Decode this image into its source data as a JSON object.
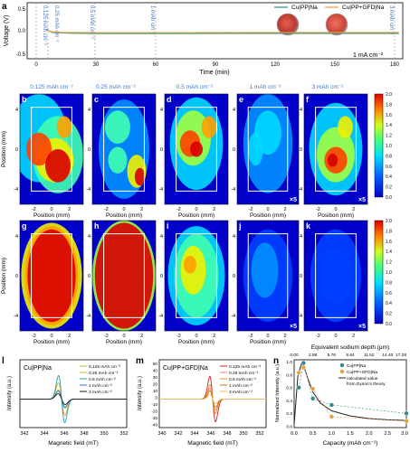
{
  "panel_a": {
    "letter": "a",
    "ylabel": "Voltage (V)",
    "xlabel": "Time (min)",
    "xticks": [
      "0",
      "30",
      "60",
      "90",
      "120",
      "150",
      "180"
    ],
    "yticks": [
      "0.5",
      "0.0",
      "-0.5"
    ],
    "annotations": [
      "0.125 mAh cm⁻²",
      "0.25 mAh cm⁻²",
      "0.5 mAh cm⁻²",
      "1 mAh cm⁻²",
      "3 mAh cm⁻²"
    ],
    "current_label": "1 mA cm⁻²",
    "legend": [
      "Cu|PP|Na",
      "Cu|PP+GFD|Na"
    ]
  },
  "maps": {
    "row1_titles": [
      "0.125 mAh cm⁻²",
      "0.25 mAh cm⁻²",
      "0.5 mAh cm⁻²",
      "1 mAh cm⁻²",
      "3 mAh cm⁻²"
    ],
    "letters_row1": [
      "b",
      "c",
      "d",
      "e",
      "f"
    ],
    "letters_row2": [
      "g",
      "h",
      "i",
      "j",
      "k"
    ],
    "ylabel": "Position (mm)",
    "xlabel": "Position (mm)",
    "yticks": [
      "4",
      "2",
      "0",
      "-2",
      "-4"
    ],
    "xticks": [
      "-2",
      "0",
      "2"
    ],
    "scale_row1": [
      "",
      "",
      " ",
      "×5",
      "×5"
    ],
    "scale_row2": [
      "",
      "",
      "",
      "×5",
      "×5"
    ],
    "colorbar_ticks": [
      "2.0",
      "1.8",
      "1.6",
      "1.4",
      "1.2",
      "1.0",
      "0.8",
      "0.6",
      "0.4",
      "0.2",
      "0.0"
    ]
  },
  "panel_l": {
    "letter": "l",
    "title": "Cu|PP|Na",
    "xlabel": "Magnetic field (mT)",
    "ylabel": "Intensity (a.u.)",
    "xticks": [
      "342",
      "344",
      "346",
      "348",
      "350",
      "352"
    ],
    "legend": [
      "0.125 mAh cm⁻²",
      "0.25 mAh cm⁻²",
      "0.5 mAh cm⁻²",
      "1 mAh cm⁻²",
      "3 mAh cm⁻²"
    ]
  },
  "panel_m": {
    "letter": "m",
    "title": "Cu|PP+GFD|Na",
    "xlabel": "Magnetic field (mT)",
    "ylabel": "Intensity (a.u.)",
    "xticks": [
      "340",
      "342",
      "344",
      "346",
      "348",
      "350",
      "352"
    ],
    "yticks": [
      "50",
      "40",
      "30",
      "20",
      "10",
      "0",
      "-10",
      "-20",
      "-30",
      "-40"
    ],
    "legend": [
      "0.125 mAh cm⁻²",
      "0.25 mAh cm⁻²",
      "0.5 mAh cm⁻²",
      "1 mAh cm⁻²",
      "3 mAh cm⁻²"
    ]
  },
  "panel_n": {
    "letter": "n",
    "top_axis_label": "Equivalent sodium depth (μm)",
    "top_ticks": [
      "0.00",
      "2.88",
      "5.76",
      "8.64",
      "11.52",
      "14.40",
      "17.28"
    ],
    "xlabel": "Capacity (mAh cm⁻²)",
    "ylabel": "Normalized Intensity (a.u.)",
    "xticks": [
      "0.0",
      "0.5",
      "1.0",
      "1.5",
      "2.0",
      "2.5",
      "3.0"
    ],
    "yticks": [
      "1.0",
      "0.8",
      "0.6",
      "0.4",
      "0.2",
      "0.0"
    ],
    "legend": [
      "Cu|PP|Na",
      "Cu|PP+GFD|Na",
      "calculated value",
      "from Dyson's theory"
    ]
  },
  "colors": {
    "pp": "#2e8b8b",
    "gfd": "#e8a040",
    "l_series": [
      "#9acd32",
      "#f0a030",
      "#2aa0a0",
      "#3b6fd8",
      "#222222"
    ],
    "m_series": [
      "#cc2222",
      "#f08080",
      "#e89030",
      "#b8860b",
      "#f4b860"
    ],
    "title_blue": "#3f78c8"
  },
  "chart_data": [
    {
      "type": "line",
      "panel": "a",
      "xlabel": "Time (min)",
      "ylabel": "Voltage (V)",
      "xlim": [
        -10,
        182
      ],
      "ylim": [
        -0.5,
        0.5
      ],
      "series": [
        {
          "name": "Cu|PP|Na",
          "x": [
            0,
            3,
            8,
            15,
            30,
            60,
            90,
            120,
            150,
            180
          ],
          "values": [
            0.02,
            -0.03,
            -0.04,
            -0.045,
            -0.05,
            -0.05,
            -0.048,
            -0.047,
            -0.047,
            -0.046
          ]
        },
        {
          "name": "Cu|PP+GFD|Na",
          "x": [
            0,
            3,
            8,
            15,
            30,
            60,
            90,
            120,
            150,
            180
          ],
          "values": [
            0.01,
            -0.02,
            -0.03,
            -0.03,
            -0.035,
            -0.035,
            -0.032,
            -0.03,
            -0.03,
            -0.03
          ]
        }
      ]
    },
    {
      "type": "line",
      "panel": "n",
      "xlabel": "Capacity (mAh cm⁻²)",
      "ylabel": "Normalized Intensity (a.u.)",
      "xlim": [
        0,
        3.0
      ],
      "ylim": [
        0,
        1.05
      ],
      "series": [
        {
          "name": "Cu|PP|Na",
          "x": [
            0.125,
            0.25,
            0.5,
            1,
            3
          ],
          "values": [
            0.62,
            1.0,
            0.45,
            0.35,
            0.22
          ]
        },
        {
          "name": "Cu|PP+GFD|Na",
          "x": [
            0.125,
            0.25,
            0.5,
            1,
            3
          ],
          "values": [
            0.85,
            0.93,
            0.6,
            0.17,
            0.1
          ]
        },
        {
          "name": "calculated value",
          "x": [
            0,
            0.1,
            0.2,
            0.3,
            0.4,
            0.5,
            0.7,
            1.0,
            1.5,
            2.0,
            2.5,
            3.0
          ],
          "values": [
            0.05,
            0.8,
            1.0,
            0.88,
            0.7,
            0.55,
            0.38,
            0.26,
            0.18,
            0.14,
            0.12,
            0.11
          ]
        }
      ]
    }
  ]
}
